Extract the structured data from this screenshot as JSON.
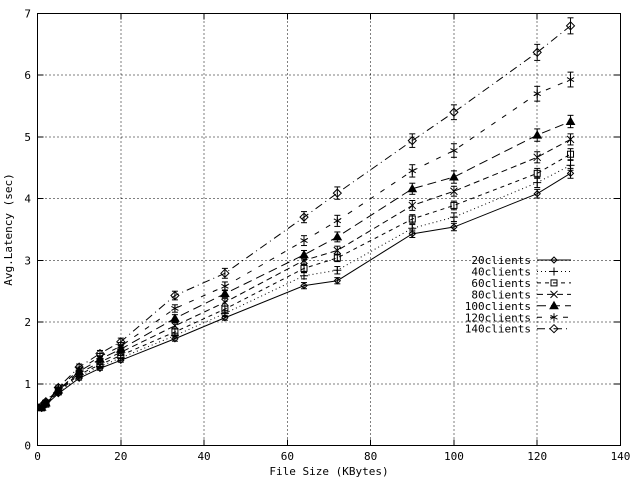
{
  "window": {
    "background": "#ffffff",
    "foreground": "#000000"
  },
  "chart_data": {
    "type": "line",
    "title": "",
    "xlabel": "File Size (KBytes)",
    "ylabel": "Avg.Latency (sec)",
    "xlim": [
      0,
      140
    ],
    "ylim": [
      0,
      7
    ],
    "xticks": [
      0,
      20,
      40,
      60,
      80,
      100,
      120,
      140
    ],
    "yticks": [
      0,
      1,
      2,
      3,
      4,
      5,
      6,
      7
    ],
    "grid": true,
    "errorbars": true,
    "legend_position": "inside-right-middle",
    "x": [
      1,
      2,
      5,
      10,
      15,
      20,
      33,
      45,
      64,
      72,
      90,
      100,
      120,
      128
    ],
    "series": [
      {
        "name": "20clients",
        "marker": "diamond-small",
        "line": "solid",
        "values": [
          0.6,
          0.66,
          0.84,
          1.09,
          1.25,
          1.38,
          1.73,
          2.07,
          2.59,
          2.67,
          3.43,
          3.54,
          4.08,
          4.41
        ],
        "err": [
          0.02,
          0.02,
          0.02,
          0.03,
          0.03,
          0.03,
          0.04,
          0.04,
          0.05,
          0.05,
          0.06,
          0.06,
          0.07,
          0.08
        ]
      },
      {
        "name": "40clients",
        "marker": "plus",
        "line": "dotted",
        "values": [
          0.61,
          0.67,
          0.86,
          1.12,
          1.28,
          1.42,
          1.78,
          2.14,
          2.75,
          2.84,
          3.52,
          3.7,
          4.26,
          4.54
        ],
        "err": [
          0.02,
          0.02,
          0.02,
          0.03,
          0.03,
          0.04,
          0.04,
          0.05,
          0.05,
          0.06,
          0.06,
          0.07,
          0.08,
          0.08
        ]
      },
      {
        "name": "60clients",
        "marker": "square-open",
        "line": "dash-short",
        "values": [
          0.61,
          0.67,
          0.87,
          1.15,
          1.31,
          1.46,
          1.84,
          2.21,
          2.87,
          3.04,
          3.67,
          3.89,
          4.41,
          4.72
        ],
        "err": [
          0.02,
          0.02,
          0.03,
          0.03,
          0.04,
          0.04,
          0.05,
          0.05,
          0.06,
          0.06,
          0.07,
          0.07,
          0.08,
          0.09
        ]
      },
      {
        "name": "80clients",
        "marker": "cross",
        "line": "dash-medium",
        "values": [
          0.62,
          0.68,
          0.89,
          1.17,
          1.35,
          1.51,
          1.94,
          2.32,
          3.0,
          3.16,
          3.89,
          4.12,
          4.67,
          4.96
        ],
        "err": [
          0.02,
          0.02,
          0.03,
          0.04,
          0.04,
          0.05,
          0.05,
          0.06,
          0.06,
          0.07,
          0.08,
          0.08,
          0.09,
          0.09
        ]
      },
      {
        "name": "100clients",
        "marker": "triangle-filled",
        "line": "dash-long",
        "values": [
          0.62,
          0.69,
          0.9,
          1.2,
          1.4,
          1.56,
          2.06,
          2.46,
          3.09,
          3.38,
          4.16,
          4.35,
          5.03,
          5.25
        ],
        "err": [
          0.02,
          0.03,
          0.03,
          0.04,
          0.05,
          0.05,
          0.06,
          0.06,
          0.07,
          0.08,
          0.09,
          0.1,
          0.1,
          0.1
        ]
      },
      {
        "name": "120clients",
        "marker": "asterisk",
        "line": "dash-sparse",
        "values": [
          0.63,
          0.7,
          0.92,
          1.23,
          1.44,
          1.61,
          2.22,
          2.58,
          3.32,
          3.64,
          4.45,
          4.78,
          5.7,
          5.93
        ],
        "err": [
          0.02,
          0.03,
          0.03,
          0.04,
          0.05,
          0.06,
          0.06,
          0.07,
          0.08,
          0.09,
          0.1,
          0.11,
          0.12,
          0.12
        ]
      },
      {
        "name": "140clients",
        "marker": "diamond-open",
        "line": "dash-dot",
        "values": [
          0.64,
          0.71,
          0.94,
          1.27,
          1.49,
          1.68,
          2.43,
          2.79,
          3.7,
          4.09,
          4.94,
          5.4,
          6.37,
          6.8
        ],
        "err": [
          0.02,
          0.03,
          0.04,
          0.05,
          0.05,
          0.06,
          0.07,
          0.08,
          0.09,
          0.1,
          0.11,
          0.12,
          0.13,
          0.13
        ]
      }
    ]
  }
}
